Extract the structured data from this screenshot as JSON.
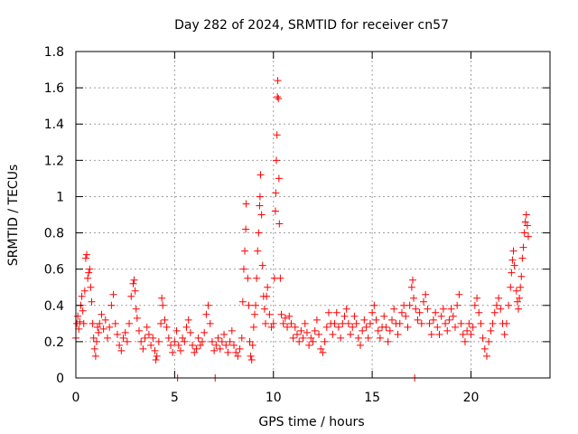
{
  "chart_data": {
    "type": "scatter",
    "title": "Day 282 of 2024, SRMTID for receiver cn57",
    "xlabel": "GPS time / hours",
    "ylabel": "SRMTID / TECUs",
    "xlim": [
      0,
      24
    ],
    "ylim": [
      0,
      1.8
    ],
    "xticks": [
      0,
      5,
      10,
      15,
      20
    ],
    "yticks": [
      0,
      0.2,
      0.4,
      0.6,
      0.8,
      1,
      1.2,
      1.4,
      1.6,
      1.8
    ],
    "xtick_labels": [
      "0",
      "5",
      "10",
      "15",
      "20"
    ],
    "ytick_labels": [
      "0",
      "0.2",
      "0.4",
      "0.6",
      "0.8",
      "1",
      "1.2",
      "1.4",
      "1.6",
      "1.8"
    ],
    "grid": true,
    "marker": "plus",
    "series": [
      {
        "name": "SRMTID",
        "color": "#ff0000",
        "points": [
          [
            0.0,
            0.22
          ],
          [
            0.05,
            0.3
          ],
          [
            0.1,
            0.34
          ],
          [
            0.15,
            0.27
          ],
          [
            0.2,
            0.31
          ],
          [
            0.25,
            0.4
          ],
          [
            0.3,
            0.45
          ],
          [
            0.35,
            0.37
          ],
          [
            0.4,
            0.3
          ],
          [
            0.45,
            0.48
          ],
          [
            0.5,
            0.66
          ],
          [
            0.55,
            0.68
          ],
          [
            0.6,
            0.55
          ],
          [
            0.65,
            0.58
          ],
          [
            0.7,
            0.6
          ],
          [
            0.75,
            0.5
          ],
          [
            0.8,
            0.42
          ],
          [
            0.85,
            0.3
          ],
          [
            0.9,
            0.22
          ],
          [
            0.95,
            0.16
          ],
          [
            1.0,
            0.12
          ],
          [
            1.05,
            0.2
          ],
          [
            1.1,
            0.28
          ],
          [
            1.15,
            0.25
          ],
          [
            1.2,
            0.3
          ],
          [
            1.3,
            0.35
          ],
          [
            1.4,
            0.27
          ],
          [
            1.5,
            0.32
          ],
          [
            1.6,
            0.22
          ],
          [
            1.7,
            0.28
          ],
          [
            1.8,
            0.4
          ],
          [
            1.9,
            0.46
          ],
          [
            2.0,
            0.3
          ],
          [
            2.1,
            0.24
          ],
          [
            2.2,
            0.18
          ],
          [
            2.3,
            0.15
          ],
          [
            2.4,
            0.22
          ],
          [
            2.5,
            0.25
          ],
          [
            2.6,
            0.2
          ],
          [
            2.7,
            0.3
          ],
          [
            2.8,
            0.45
          ],
          [
            2.9,
            0.52
          ],
          [
            2.95,
            0.54
          ],
          [
            3.0,
            0.48
          ],
          [
            3.05,
            0.38
          ],
          [
            3.1,
            0.33
          ],
          [
            3.2,
            0.26
          ],
          [
            3.3,
            0.2
          ],
          [
            3.4,
            0.16
          ],
          [
            3.5,
            0.22
          ],
          [
            3.6,
            0.28
          ],
          [
            3.7,
            0.24
          ],
          [
            3.8,
            0.18
          ],
          [
            3.9,
            0.22
          ],
          [
            4.0,
            0.15
          ],
          [
            4.05,
            0.1
          ],
          [
            4.1,
            0.12
          ],
          [
            4.2,
            0.2
          ],
          [
            4.3,
            0.3
          ],
          [
            4.35,
            0.44
          ],
          [
            4.4,
            0.4
          ],
          [
            4.5,
            0.32
          ],
          [
            4.6,
            0.28
          ],
          [
            4.7,
            0.22
          ],
          [
            4.8,
            0.18
          ],
          [
            4.9,
            0.14
          ],
          [
            5.0,
            0.2
          ],
          [
            5.1,
            0.26
          ],
          [
            5.15,
            0.0
          ],
          [
            5.2,
            0.18
          ],
          [
            5.3,
            0.15
          ],
          [
            5.4,
            0.22
          ],
          [
            5.5,
            0.2
          ],
          [
            5.6,
            0.28
          ],
          [
            5.7,
            0.32
          ],
          [
            5.8,
            0.25
          ],
          [
            5.9,
            0.18
          ],
          [
            6.0,
            0.14
          ],
          [
            6.1,
            0.16
          ],
          [
            6.2,
            0.22
          ],
          [
            6.3,
            0.18
          ],
          [
            6.4,
            0.2
          ],
          [
            6.5,
            0.25
          ],
          [
            6.6,
            0.35
          ],
          [
            6.7,
            0.4
          ],
          [
            6.8,
            0.3
          ],
          [
            6.9,
            0.2
          ],
          [
            7.0,
            0.15
          ],
          [
            7.05,
            0.0
          ],
          [
            7.1,
            0.18
          ],
          [
            7.2,
            0.22
          ],
          [
            7.3,
            0.16
          ],
          [
            7.4,
            0.2
          ],
          [
            7.5,
            0.24
          ],
          [
            7.6,
            0.18
          ],
          [
            7.7,
            0.14
          ],
          [
            7.8,
            0.2
          ],
          [
            7.9,
            0.26
          ],
          [
            8.0,
            0.18
          ],
          [
            8.1,
            0.14
          ],
          [
            8.2,
            0.12
          ],
          [
            8.3,
            0.16
          ],
          [
            8.4,
            0.22
          ],
          [
            8.45,
            0.42
          ],
          [
            8.5,
            0.6
          ],
          [
            8.55,
            0.7
          ],
          [
            8.6,
            0.82
          ],
          [
            8.62,
            0.96
          ],
          [
            8.7,
            0.55
          ],
          [
            8.75,
            0.4
          ],
          [
            8.8,
            0.2
          ],
          [
            8.85,
            0.12
          ],
          [
            8.9,
            0.1
          ],
          [
            8.95,
            0.18
          ],
          [
            9.0,
            0.28
          ],
          [
            9.05,
            0.35
          ],
          [
            9.1,
            0.4
          ],
          [
            9.15,
            0.55
          ],
          [
            9.2,
            0.7
          ],
          [
            9.25,
            0.8
          ],
          [
            9.3,
            0.95
          ],
          [
            9.32,
            1.0
          ],
          [
            9.35,
            1.12
          ],
          [
            9.4,
            0.9
          ],
          [
            9.45,
            0.62
          ],
          [
            9.5,
            0.45
          ],
          [
            9.55,
            0.38
          ],
          [
            9.6,
            0.3
          ],
          [
            9.65,
            0.45
          ],
          [
            9.7,
            0.5
          ],
          [
            9.8,
            0.35
          ],
          [
            9.9,
            0.28
          ],
          [
            10.0,
            0.3
          ],
          [
            10.05,
            0.55
          ],
          [
            10.1,
            0.92
          ],
          [
            10.12,
            1.02
          ],
          [
            10.15,
            1.2
          ],
          [
            10.18,
            1.34
          ],
          [
            10.2,
            1.55
          ],
          [
            10.22,
            1.64
          ],
          [
            10.25,
            1.54
          ],
          [
            10.28,
            1.1
          ],
          [
            10.3,
            0.85
          ],
          [
            10.35,
            0.55
          ],
          [
            10.4,
            0.35
          ],
          [
            10.5,
            0.3
          ],
          [
            10.6,
            0.33
          ],
          [
            10.7,
            0.28
          ],
          [
            10.8,
            0.34
          ],
          [
            10.9,
            0.3
          ],
          [
            11.0,
            0.22
          ],
          [
            11.1,
            0.28
          ],
          [
            11.2,
            0.24
          ],
          [
            11.3,
            0.2
          ],
          [
            11.4,
            0.26
          ],
          [
            11.5,
            0.22
          ],
          [
            11.6,
            0.3
          ],
          [
            11.7,
            0.25
          ],
          [
            11.8,
            0.18
          ],
          [
            11.9,
            0.22
          ],
          [
            12.0,
            0.2
          ],
          [
            12.1,
            0.26
          ],
          [
            12.2,
            0.32
          ],
          [
            12.3,
            0.24
          ],
          [
            12.4,
            0.16
          ],
          [
            12.5,
            0.14
          ],
          [
            12.6,
            0.2
          ],
          [
            12.7,
            0.28
          ],
          [
            12.8,
            0.36
          ],
          [
            12.9,
            0.3
          ],
          [
            13.0,
            0.24
          ],
          [
            13.1,
            0.3
          ],
          [
            13.2,
            0.36
          ],
          [
            13.3,
            0.28
          ],
          [
            13.4,
            0.22
          ],
          [
            13.5,
            0.3
          ],
          [
            13.6,
            0.34
          ],
          [
            13.7,
            0.38
          ],
          [
            13.8,
            0.3
          ],
          [
            13.9,
            0.24
          ],
          [
            14.0,
            0.28
          ],
          [
            14.1,
            0.34
          ],
          [
            14.2,
            0.3
          ],
          [
            14.3,
            0.22
          ],
          [
            14.4,
            0.18
          ],
          [
            14.5,
            0.26
          ],
          [
            14.6,
            0.32
          ],
          [
            14.7,
            0.28
          ],
          [
            14.8,
            0.22
          ],
          [
            14.9,
            0.3
          ],
          [
            15.0,
            0.36
          ],
          [
            15.1,
            0.4
          ],
          [
            15.2,
            0.32
          ],
          [
            15.3,
            0.26
          ],
          [
            15.4,
            0.22
          ],
          [
            15.5,
            0.28
          ],
          [
            15.6,
            0.34
          ],
          [
            15.7,
            0.28
          ],
          [
            15.8,
            0.2
          ],
          [
            15.9,
            0.26
          ],
          [
            16.0,
            0.32
          ],
          [
            16.1,
            0.38
          ],
          [
            16.2,
            0.3
          ],
          [
            16.3,
            0.24
          ],
          [
            16.4,
            0.3
          ],
          [
            16.5,
            0.36
          ],
          [
            16.6,
            0.4
          ],
          [
            16.7,
            0.34
          ],
          [
            16.8,
            0.28
          ],
          [
            16.9,
            0.4
          ],
          [
            17.0,
            0.5
          ],
          [
            17.05,
            0.54
          ],
          [
            17.1,
            0.44
          ],
          [
            17.15,
            0.0
          ],
          [
            17.2,
            0.38
          ],
          [
            17.3,
            0.32
          ],
          [
            17.4,
            0.36
          ],
          [
            17.5,
            0.3
          ],
          [
            17.6,
            0.42
          ],
          [
            17.7,
            0.46
          ],
          [
            17.8,
            0.38
          ],
          [
            17.9,
            0.3
          ],
          [
            18.0,
            0.24
          ],
          [
            18.1,
            0.32
          ],
          [
            18.2,
            0.36
          ],
          [
            18.3,
            0.28
          ],
          [
            18.4,
            0.24
          ],
          [
            18.5,
            0.34
          ],
          [
            18.6,
            0.38
          ],
          [
            18.7,
            0.3
          ],
          [
            18.8,
            0.26
          ],
          [
            18.9,
            0.32
          ],
          [
            19.0,
            0.38
          ],
          [
            19.1,
            0.34
          ],
          [
            19.2,
            0.28
          ],
          [
            19.3,
            0.4
          ],
          [
            19.4,
            0.46
          ],
          [
            19.5,
            0.3
          ],
          [
            19.6,
            0.24
          ],
          [
            19.7,
            0.2
          ],
          [
            19.8,
            0.26
          ],
          [
            19.9,
            0.3
          ],
          [
            20.0,
            0.24
          ],
          [
            20.1,
            0.28
          ],
          [
            20.2,
            0.4
          ],
          [
            20.3,
            0.44
          ],
          [
            20.4,
            0.36
          ],
          [
            20.5,
            0.3
          ],
          [
            20.6,
            0.22
          ],
          [
            20.7,
            0.16
          ],
          [
            20.8,
            0.12
          ],
          [
            20.9,
            0.2
          ],
          [
            21.0,
            0.26
          ],
          [
            21.1,
            0.3
          ],
          [
            21.2,
            0.36
          ],
          [
            21.3,
            0.4
          ],
          [
            21.4,
            0.44
          ],
          [
            21.5,
            0.38
          ],
          [
            21.6,
            0.3
          ],
          [
            21.7,
            0.24
          ],
          [
            21.8,
            0.3
          ],
          [
            21.9,
            0.4
          ],
          [
            22.0,
            0.5
          ],
          [
            22.05,
            0.58
          ],
          [
            22.1,
            0.65
          ],
          [
            22.15,
            0.7
          ],
          [
            22.2,
            0.62
          ],
          [
            22.3,
            0.48
          ],
          [
            22.35,
            0.42
          ],
          [
            22.4,
            0.38
          ],
          [
            22.45,
            0.44
          ],
          [
            22.5,
            0.5
          ],
          [
            22.55,
            0.56
          ],
          [
            22.6,
            0.66
          ],
          [
            22.65,
            0.72
          ],
          [
            22.7,
            0.8
          ],
          [
            22.75,
            0.86
          ],
          [
            22.8,
            0.9
          ],
          [
            22.85,
            0.84
          ],
          [
            22.9,
            0.78
          ]
        ]
      }
    ]
  }
}
